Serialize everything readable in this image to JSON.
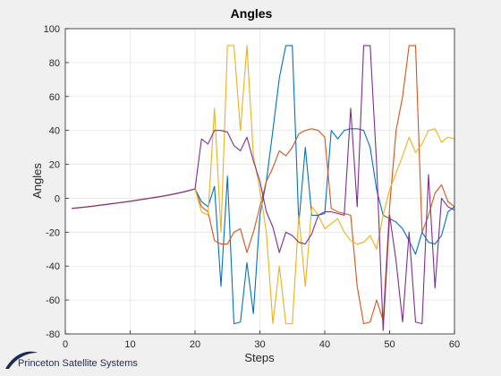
{
  "chart_data": {
    "type": "line",
    "title": "Angles",
    "xlabel": "Steps",
    "ylabel": "Angles",
    "xlim": [
      0,
      60
    ],
    "ylim": [
      -80,
      100
    ],
    "xticks": [
      0,
      10,
      20,
      30,
      40,
      50,
      60
    ],
    "yticks": [
      -80,
      -60,
      -40,
      -20,
      0,
      20,
      40,
      60,
      80,
      100
    ],
    "grid": true,
    "x": [
      1,
      2,
      3,
      4,
      5,
      6,
      7,
      8,
      9,
      10,
      11,
      12,
      13,
      14,
      15,
      16,
      17,
      18,
      19,
      20,
      21,
      22,
      23,
      24,
      25,
      26,
      27,
      28,
      29,
      30,
      31,
      32,
      33,
      34,
      35,
      36,
      37,
      38,
      39,
      40,
      41,
      42,
      43,
      44,
      45,
      46,
      47,
      48,
      49,
      50,
      51,
      52,
      53,
      54,
      55,
      56,
      57,
      58,
      59,
      60
    ],
    "series": [
      {
        "color": "#0072BD",
        "values": [
          -6,
          -5.6,
          -5.2,
          -4.8,
          -4.3,
          -3.8,
          -3.3,
          -2.8,
          -2.3,
          -1.8,
          -1.2,
          -0.6,
          0,
          0.6,
          1.2,
          1.9,
          2.7,
          3.5,
          4.5,
          5.5,
          -2,
          -5,
          7,
          -52,
          13,
          -74,
          -73,
          -38,
          -68,
          -10,
          10,
          40,
          71,
          90,
          90,
          -15,
          30,
          -10,
          -10,
          -9,
          40,
          35,
          40,
          41,
          41,
          40,
          30,
          5,
          -10,
          -12,
          -14,
          -18,
          -25,
          -33,
          -20,
          -26,
          -27,
          -22,
          -8,
          -5
        ]
      },
      {
        "color": "#D95319",
        "values": [
          -6,
          -5.6,
          -5.2,
          -4.8,
          -4.3,
          -3.8,
          -3.3,
          -2.8,
          -2.3,
          -1.8,
          -1.2,
          -0.6,
          0,
          0.6,
          1.2,
          1.9,
          2.7,
          3.5,
          4.5,
          5.5,
          -5,
          -8,
          -25,
          -27,
          -27,
          -20,
          -18,
          -32,
          -20,
          -5,
          10,
          18,
          28,
          25,
          30,
          38,
          40,
          41,
          40,
          36,
          -6,
          -8,
          -9,
          -10,
          -52,
          -74,
          -73,
          -60,
          -72,
          -5,
          40,
          60,
          90,
          90,
          -20,
          -10,
          3,
          8,
          -2,
          -5
        ]
      },
      {
        "color": "#EDB120",
        "values": [
          -6,
          -5.6,
          -5.2,
          -4.8,
          -4.3,
          -3.8,
          -3.3,
          -2.8,
          -2.3,
          -1.8,
          -1.2,
          -0.6,
          0,
          0.6,
          1.2,
          1.9,
          2.7,
          3.5,
          4.5,
          5.5,
          -8,
          -10,
          53,
          -20,
          90,
          90,
          40,
          90,
          25,
          5,
          -20,
          -74,
          -40,
          -74,
          -74,
          -10,
          -52,
          -5,
          -10,
          -18,
          -15,
          -12,
          -20,
          -25,
          -27,
          -26,
          -22,
          -30,
          -10,
          5,
          15,
          25,
          36,
          27,
          32,
          40,
          41,
          33,
          36,
          35
        ]
      },
      {
        "color": "#7E2F8E",
        "values": [
          -6,
          -5.6,
          -5.2,
          -4.8,
          -4.3,
          -3.8,
          -3.3,
          -2.8,
          -2.3,
          -1.8,
          -1.2,
          -0.6,
          0,
          0.6,
          1.2,
          1.9,
          2.7,
          3.5,
          4.5,
          5.5,
          35,
          32,
          40,
          40,
          39,
          31,
          28,
          36,
          22,
          10,
          -8,
          -17,
          -32,
          -20,
          -22,
          -26,
          -27,
          -21,
          -10,
          -8,
          -8,
          -9,
          -10,
          53,
          -5,
          90,
          90,
          20,
          -78,
          -10,
          -37,
          -73,
          -20,
          -73,
          -74,
          14,
          -53,
          0,
          -5,
          -7
        ]
      }
    ]
  },
  "watermark": {
    "text": "Princeton Satellite Systems",
    "color": "#1d2a55"
  }
}
